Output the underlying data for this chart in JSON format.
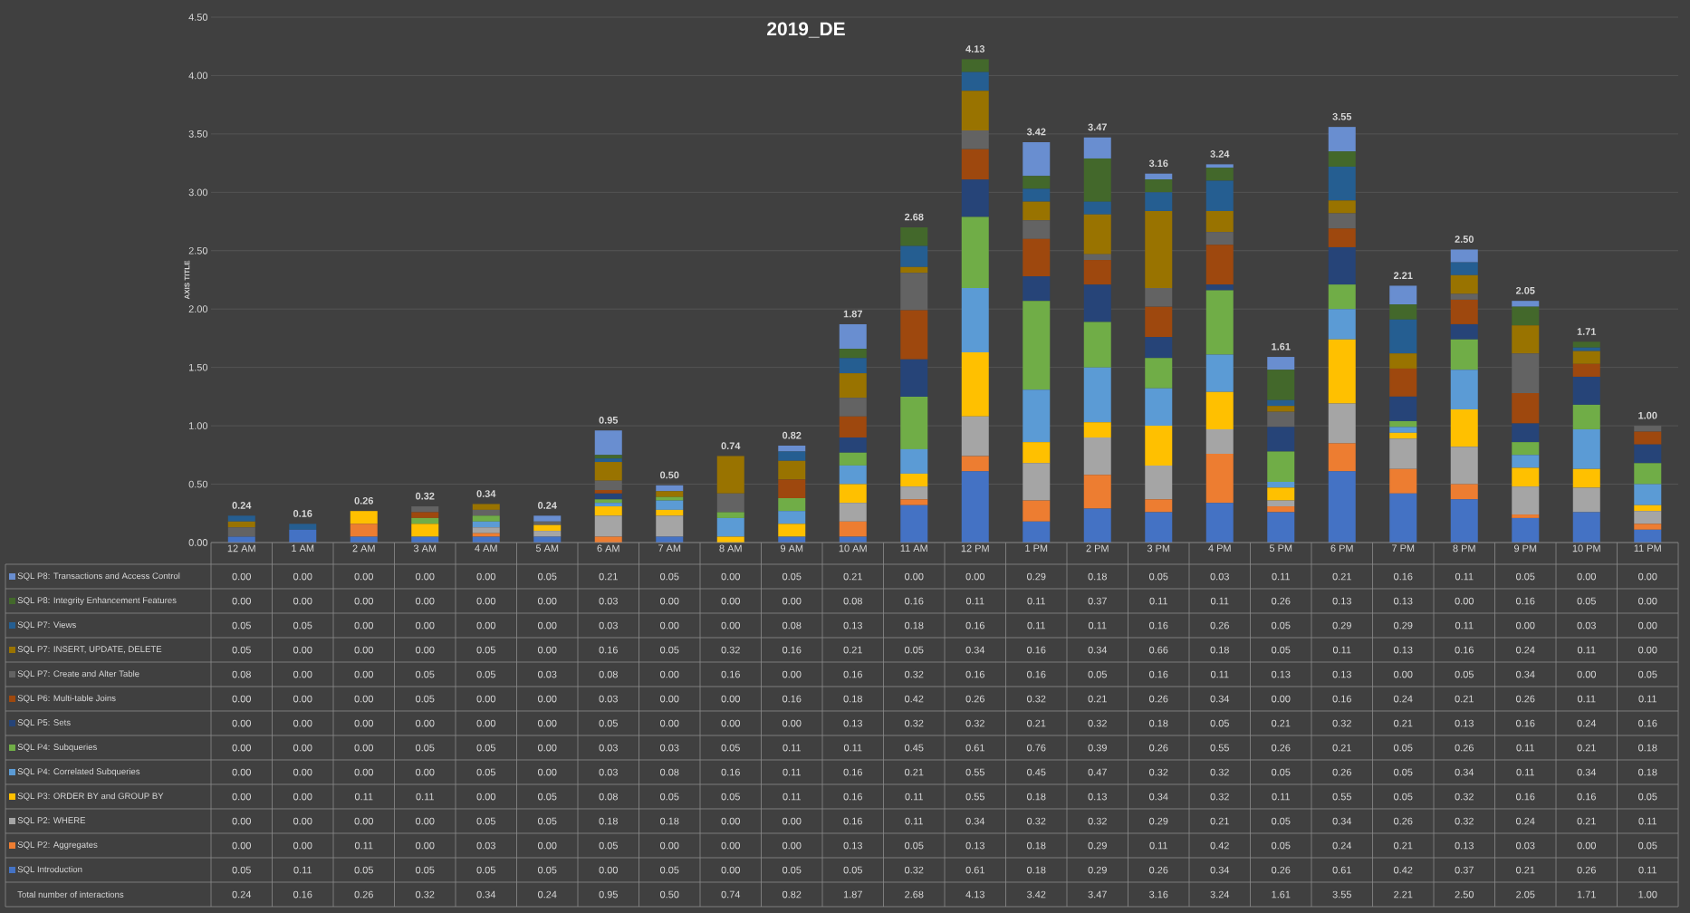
{
  "chart_data": {
    "type": "bar",
    "title": "2019_DE",
    "ylabel": "AXIS TITLE",
    "stacked": true,
    "grid": "y",
    "legend": "bottom",
    "categories": [
      "12 AM",
      "1 AM",
      "2 AM",
      "3 AM",
      "4 AM",
      "5 AM",
      "6 AM",
      "7 AM",
      "8 AM",
      "9 AM",
      "10 AM",
      "11 AM",
      "12 PM",
      "1 PM",
      "2 PM",
      "3 PM",
      "4 PM",
      "5 PM",
      "6 PM",
      "7 PM",
      "8 PM",
      "9 PM",
      "10 PM",
      "11 PM"
    ],
    "ylim": [
      0,
      4.5
    ],
    "yticks": [
      {
        "value": 0,
        "label": "0.00"
      },
      {
        "value": 0.5,
        "label": "0.50"
      },
      {
        "value": 1,
        "label": "1.00"
      },
      {
        "value": 1.5,
        "label": "1.50"
      },
      {
        "value": 2,
        "label": "2.00"
      },
      {
        "value": 2.5,
        "label": "2.50"
      },
      {
        "value": 3,
        "label": "3.00"
      },
      {
        "value": 3.5,
        "label": "3.50"
      },
      {
        "value": 4,
        "label": "4.00"
      },
      {
        "value": 4.5,
        "label": "4.50"
      }
    ],
    "series": [
      {
        "name": "SQL Introduction",
        "color": "#4472c4",
        "values": [
          0.05,
          0.11,
          0.05,
          0.05,
          0.05,
          0.05,
          0,
          0.05,
          0,
          0.05,
          0.05,
          0.32,
          0.61,
          0.18,
          0.29,
          0.26,
          0.34,
          0.26,
          0.61,
          0.42,
          0.37,
          0.21,
          0.26,
          0.11
        ],
        "value_labels": [
          "0.05",
          "0.11",
          "0.05",
          "0.05",
          "0.05",
          "0.05",
          "0.00",
          "0.05",
          "0.00",
          "0.05",
          "0.05",
          "0.32",
          "0.61",
          "0.18",
          "0.29",
          "0.26",
          "0.34",
          "0.26",
          "0.61",
          "0.42",
          "0.37",
          "0.21",
          "0.26",
          "0.11"
        ]
      },
      {
        "name": "SQL P2: Aggregates",
        "color": "#ed7d31",
        "values": [
          0,
          0,
          0.11,
          0,
          0.03,
          0,
          0.05,
          0,
          0,
          0,
          0.13,
          0.05,
          0.13,
          0.18,
          0.29,
          0.11,
          0.42,
          0.05,
          0.24,
          0.21,
          0.13,
          0.03,
          0,
          0.05
        ],
        "value_labels": [
          "0.00",
          "0.00",
          "0.11",
          "0.00",
          "0.03",
          "0.00",
          "0.05",
          "0.00",
          "0.00",
          "0.00",
          "0.13",
          "0.05",
          "0.13",
          "0.18",
          "0.29",
          "0.11",
          "0.42",
          "0.05",
          "0.24",
          "0.21",
          "0.13",
          "0.03",
          "0.00",
          "0.05"
        ]
      },
      {
        "name": "SQL P2: WHERE",
        "color": "#a5a5a5",
        "values": [
          0,
          0,
          0,
          0,
          0.05,
          0.05,
          0.18,
          0.18,
          0,
          0,
          0.16,
          0.11,
          0.34,
          0.32,
          0.32,
          0.29,
          0.21,
          0.05,
          0.34,
          0.26,
          0.32,
          0.24,
          0.21,
          0.11
        ],
        "value_labels": [
          "0.00",
          "0.00",
          "0.00",
          "0.00",
          "0.05",
          "0.05",
          "0.18",
          "0.18",
          "0.00",
          "0.00",
          "0.16",
          "0.11",
          "0.34",
          "0.32",
          "0.32",
          "0.29",
          "0.21",
          "0.05",
          "0.34",
          "0.26",
          "0.32",
          "0.24",
          "0.21",
          "0.11"
        ]
      },
      {
        "name": "SQL P3: ORDER BY and GROUP BY",
        "color": "#ffc000",
        "values": [
          0,
          0,
          0.11,
          0.11,
          0,
          0.05,
          0.08,
          0.05,
          0.05,
          0.11,
          0.16,
          0.11,
          0.55,
          0.18,
          0.13,
          0.34,
          0.32,
          0.11,
          0.55,
          0.05,
          0.32,
          0.16,
          0.16,
          0.05
        ],
        "value_labels": [
          "0.00",
          "0.00",
          "0.11",
          "0.11",
          "0.00",
          "0.05",
          "0.08",
          "0.05",
          "0.05",
          "0.11",
          "0.16",
          "0.11",
          "0.55",
          "0.18",
          "0.13",
          "0.34",
          "0.32",
          "0.11",
          "0.55",
          "0.05",
          "0.32",
          "0.16",
          "0.16",
          "0.05"
        ]
      },
      {
        "name": "SQL P4: Correlated Subqueries",
        "color": "#5b9bd5",
        "values": [
          0,
          0,
          0,
          0,
          0.05,
          0,
          0.03,
          0.08,
          0.16,
          0.11,
          0.16,
          0.21,
          0.55,
          0.45,
          0.47,
          0.32,
          0.32,
          0.05,
          0.26,
          0.05,
          0.34,
          0.11,
          0.34,
          0.18
        ],
        "value_labels": [
          "0.00",
          "0.00",
          "0.00",
          "0.00",
          "0.05",
          "0.00",
          "0.03",
          "0.08",
          "0.16",
          "0.11",
          "0.16",
          "0.21",
          "0.55",
          "0.45",
          "0.47",
          "0.32",
          "0.32",
          "0.05",
          "0.26",
          "0.05",
          "0.34",
          "0.11",
          "0.34",
          "0.18"
        ]
      },
      {
        "name": "SQL P4: Subqueries",
        "color": "#70ad47",
        "values": [
          0,
          0,
          0,
          0.05,
          0.05,
          0,
          0.03,
          0.03,
          0.05,
          0.11,
          0.11,
          0.45,
          0.61,
          0.76,
          0.39,
          0.26,
          0.55,
          0.26,
          0.21,
          0.05,
          0.26,
          0.11,
          0.21,
          0.18
        ],
        "value_labels": [
          "0.00",
          "0.00",
          "0.00",
          "0.05",
          "0.05",
          "0.00",
          "0.03",
          "0.03",
          "0.05",
          "0.11",
          "0.11",
          "0.45",
          "0.61",
          "0.76",
          "0.39",
          "0.26",
          "0.55",
          "0.26",
          "0.21",
          "0.05",
          "0.26",
          "0.11",
          "0.21",
          "0.18"
        ]
      },
      {
        "name": "SQL P5: Sets",
        "color": "#264478",
        "values": [
          0,
          0,
          0,
          0,
          0,
          0,
          0.05,
          0,
          0,
          0,
          0.13,
          0.32,
          0.32,
          0.21,
          0.32,
          0.18,
          0.05,
          0.21,
          0.32,
          0.21,
          0.13,
          0.16,
          0.24,
          0.16
        ],
        "value_labels": [
          "0.00",
          "0.00",
          "0.00",
          "0.00",
          "0.00",
          "0.00",
          "0.05",
          "0.00",
          "0.00",
          "0.00",
          "0.13",
          "0.32",
          "0.32",
          "0.21",
          "0.32",
          "0.18",
          "0.05",
          "0.21",
          "0.32",
          "0.21",
          "0.13",
          "0.16",
          "0.24",
          "0.16"
        ]
      },
      {
        "name": "SQL P6: Multi-table Joins",
        "color": "#9e480e",
        "values": [
          0,
          0,
          0,
          0.05,
          0,
          0,
          0.03,
          0,
          0,
          0.16,
          0.18,
          0.42,
          0.26,
          0.32,
          0.21,
          0.26,
          0.34,
          0,
          0.16,
          0.24,
          0.21,
          0.26,
          0.11,
          0.11
        ],
        "value_labels": [
          "0.00",
          "0.00",
          "0.00",
          "0.05",
          "0.00",
          "0.00",
          "0.03",
          "0.00",
          "0.00",
          "0.16",
          "0.18",
          "0.42",
          "0.26",
          "0.32",
          "0.21",
          "0.26",
          "0.34",
          "0.00",
          "0.16",
          "0.24",
          "0.21",
          "0.26",
          "0.11",
          "0.11"
        ]
      },
      {
        "name": "SQL P7: Create and Alter Table",
        "color": "#636363",
        "values": [
          0.08,
          0,
          0,
          0.05,
          0.05,
          0.03,
          0.08,
          0,
          0.16,
          0,
          0.16,
          0.32,
          0.16,
          0.16,
          0.05,
          0.16,
          0.11,
          0.13,
          0.13,
          0,
          0.05,
          0.34,
          0,
          0.05
        ],
        "value_labels": [
          "0.08",
          "0.00",
          "0.00",
          "0.05",
          "0.05",
          "0.03",
          "0.08",
          "0.00",
          "0.16",
          "0.00",
          "0.16",
          "0.32",
          "0.16",
          "0.16",
          "0.05",
          "0.16",
          "0.11",
          "0.13",
          "0.13",
          "0.00",
          "0.05",
          "0.34",
          "0.00",
          "0.05"
        ]
      },
      {
        "name": "SQL P7: INSERT, UPDATE, DELETE",
        "color": "#997300",
        "values": [
          0.05,
          0,
          0,
          0,
          0.05,
          0,
          0.16,
          0.05,
          0.32,
          0.16,
          0.21,
          0.05,
          0.34,
          0.16,
          0.34,
          0.66,
          0.18,
          0.05,
          0.11,
          0.13,
          0.16,
          0.24,
          0.11,
          0
        ],
        "value_labels": [
          "0.05",
          "0.00",
          "0.00",
          "0.00",
          "0.05",
          "0.00",
          "0.16",
          "0.05",
          "0.32",
          "0.16",
          "0.21",
          "0.05",
          "0.34",
          "0.16",
          "0.34",
          "0.66",
          "0.18",
          "0.05",
          "0.11",
          "0.13",
          "0.16",
          "0.24",
          "0.11",
          "0.00"
        ]
      },
      {
        "name": "SQL P7: Views",
        "color": "#255e91",
        "values": [
          0.05,
          0.05,
          0,
          0,
          0,
          0,
          0.03,
          0,
          0,
          0.08,
          0.13,
          0.18,
          0.16,
          0.11,
          0.11,
          0.16,
          0.26,
          0.05,
          0.29,
          0.29,
          0.11,
          0,
          0.03,
          0
        ],
        "value_labels": [
          "0.05",
          "0.05",
          "0.00",
          "0.00",
          "0.00",
          "0.00",
          "0.03",
          "0.00",
          "0.00",
          "0.08",
          "0.13",
          "0.18",
          "0.16",
          "0.11",
          "0.11",
          "0.16",
          "0.26",
          "0.05",
          "0.29",
          "0.29",
          "0.11",
          "0.00",
          "0.03",
          "0.00"
        ]
      },
      {
        "name": "SQL P8: Integrity Enhancement Features",
        "color": "#43682b",
        "values": [
          0,
          0,
          0,
          0,
          0,
          0,
          0.03,
          0,
          0,
          0,
          0.08,
          0.16,
          0.11,
          0.11,
          0.37,
          0.11,
          0.11,
          0.26,
          0.13,
          0.13,
          0,
          0.16,
          0.05,
          0
        ],
        "value_labels": [
          "0.00",
          "0.00",
          "0.00",
          "0.00",
          "0.00",
          "0.00",
          "0.03",
          "0.00",
          "0.00",
          "0.00",
          "0.08",
          "0.16",
          "0.11",
          "0.11",
          "0.37",
          "0.11",
          "0.11",
          "0.26",
          "0.13",
          "0.13",
          "0.00",
          "0.16",
          "0.05",
          "0.00"
        ]
      },
      {
        "name": "SQL P8: Transactions and Access Control",
        "color": "#698ed0",
        "values": [
          0,
          0,
          0,
          0,
          0,
          0.05,
          0.21,
          0.05,
          0,
          0.05,
          0.21,
          0,
          0,
          0.29,
          0.18,
          0.05,
          0.03,
          0.11,
          0.21,
          0.16,
          0.11,
          0.05,
          0,
          0
        ],
        "value_labels": [
          "0.00",
          "0.00",
          "0.00",
          "0.00",
          "0.00",
          "0.05",
          "0.21",
          "0.05",
          "0.00",
          "0.05",
          "0.21",
          "0.00",
          "0.00",
          "0.29",
          "0.18",
          "0.05",
          "0.03",
          "0.11",
          "0.21",
          "0.16",
          "0.11",
          "0.05",
          "0.00",
          "0.00"
        ]
      }
    ],
    "totals": [
      "0.24",
      "0.16",
      "0.26",
      "0.32",
      "0.34",
      "0.24",
      "0.95",
      "0.50",
      "0.74",
      "0.82",
      "1.87",
      "2.68",
      "4.13",
      "3.42",
      "3.47",
      "3.16",
      "3.24",
      "1.61",
      "3.55",
      "2.21",
      "2.50",
      "2.05",
      "1.71",
      "1.00"
    ],
    "annotations": [
      "Total number of interactions"
    ]
  }
}
